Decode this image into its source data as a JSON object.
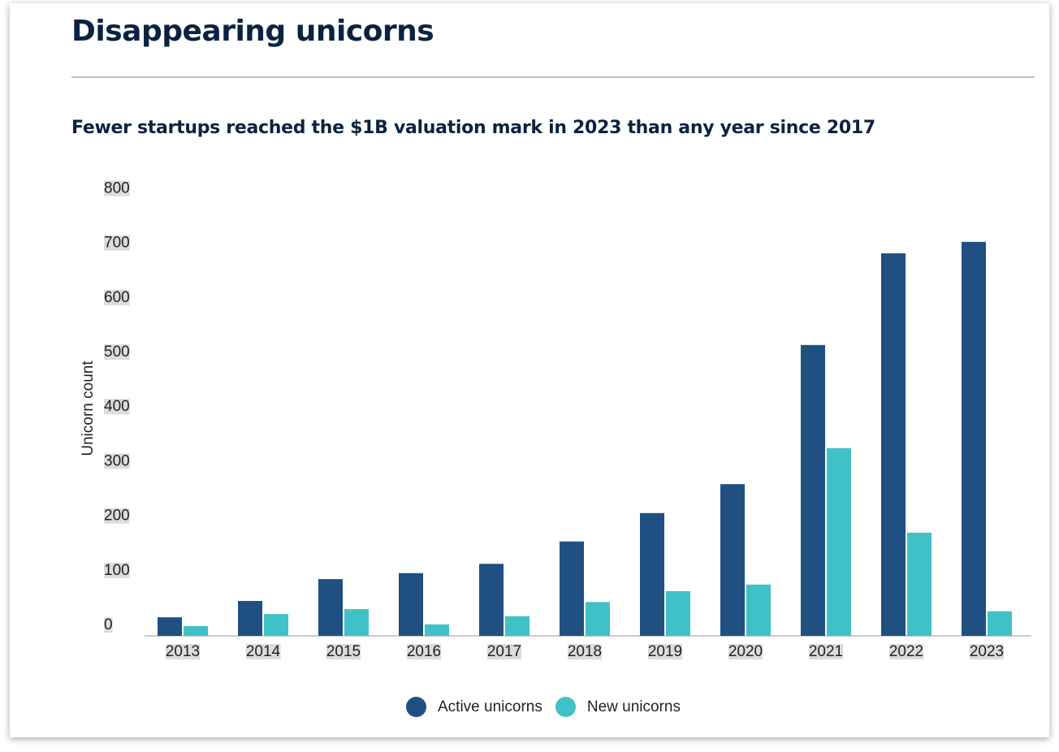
{
  "title": "Disappearing unicorns",
  "subtitle": "Fewer startups reached the $1B valuation mark in 2023 than any year since 2017",
  "chart_data": {
    "type": "bar",
    "title": "Disappearing unicorns",
    "subtitle": "Fewer startups reached the $1B valuation mark in 2023 than any year since 2017",
    "xlabel": "",
    "ylabel": "Unicorn count",
    "ylim": [
      0,
      800
    ],
    "yticks": [
      0,
      100,
      200,
      300,
      400,
      500,
      600,
      700,
      800
    ],
    "categories": [
      "2013",
      "2014",
      "2015",
      "2016",
      "2017",
      "2018",
      "2019",
      "2020",
      "2021",
      "2022",
      "2023"
    ],
    "series": [
      {
        "name": "Active unicorns",
        "color": "#1f5081",
        "values": [
          34,
          64,
          104,
          115,
          132,
          173,
          225,
          278,
          533,
          701,
          722
        ]
      },
      {
        "name": "New unicorns",
        "color": "#40c1c7",
        "values": [
          18,
          40,
          49,
          21,
          36,
          62,
          82,
          94,
          344,
          189,
          45
        ]
      }
    ],
    "legend": "bottom-center",
    "grid": false
  }
}
